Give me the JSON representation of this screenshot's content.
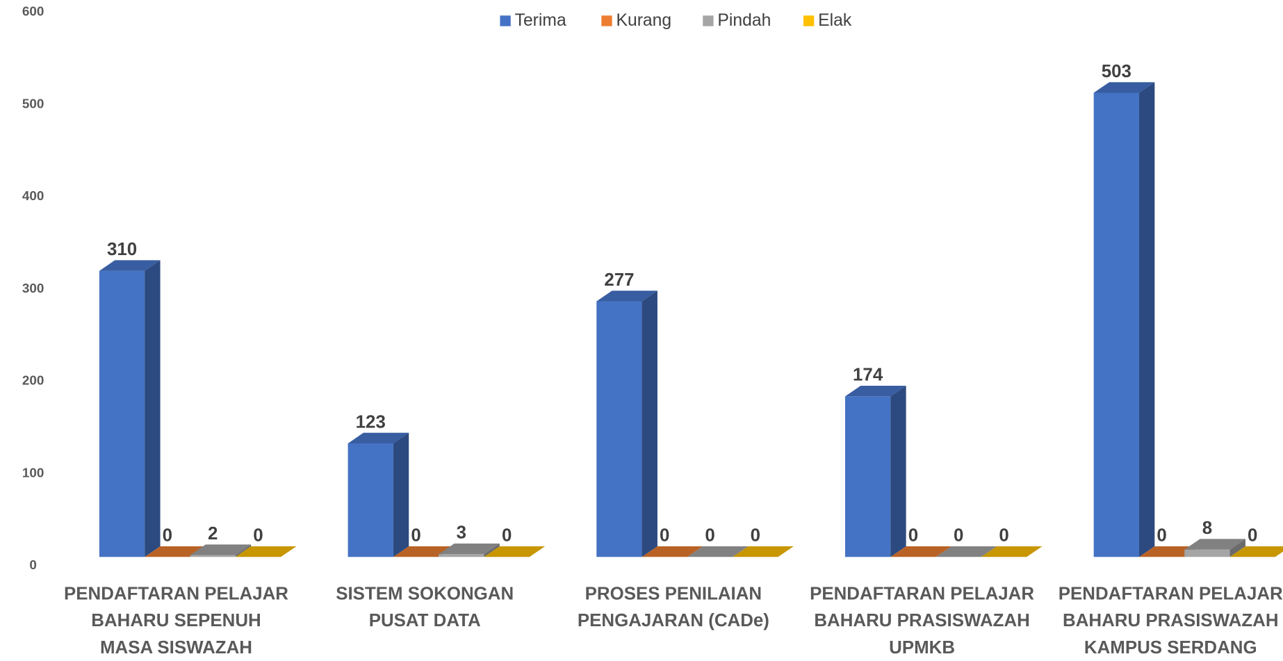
{
  "chart_data": {
    "type": "bar3d",
    "categories": [
      "PENDAFTARAN PELAJAR BAHARU SEPENUH MASA SISWAZAH",
      "SISTEM SOKONGAN PUSAT DATA",
      "PROSES PENILAIAN PENGAJARAN (CADe)",
      "PENDAFTARAN PELAJAR BAHARU PRASISWAZAH UPMKB",
      "PENDAFTARAN PELAJAR BAHARU PRASISWAZAH KAMPUS SERDANG"
    ],
    "series": [
      {
        "name": "Terima",
        "color": "#4472c4",
        "values": [
          310,
          123,
          277,
          174,
          503
        ]
      },
      {
        "name": "Kurang",
        "color": "#ed7d31",
        "values": [
          0,
          0,
          0,
          0,
          0
        ]
      },
      {
        "name": "Pindah",
        "color": "#a5a5a5",
        "values": [
          2,
          3,
          0,
          0,
          8
        ]
      },
      {
        "name": "Elak",
        "color": "#ffc000",
        "values": [
          0,
          0,
          0,
          0,
          0
        ]
      }
    ],
    "ylim": [
      0,
      600
    ],
    "yticks": [
      0,
      100,
      200,
      300,
      400,
      500,
      600
    ],
    "legend": "top"
  }
}
